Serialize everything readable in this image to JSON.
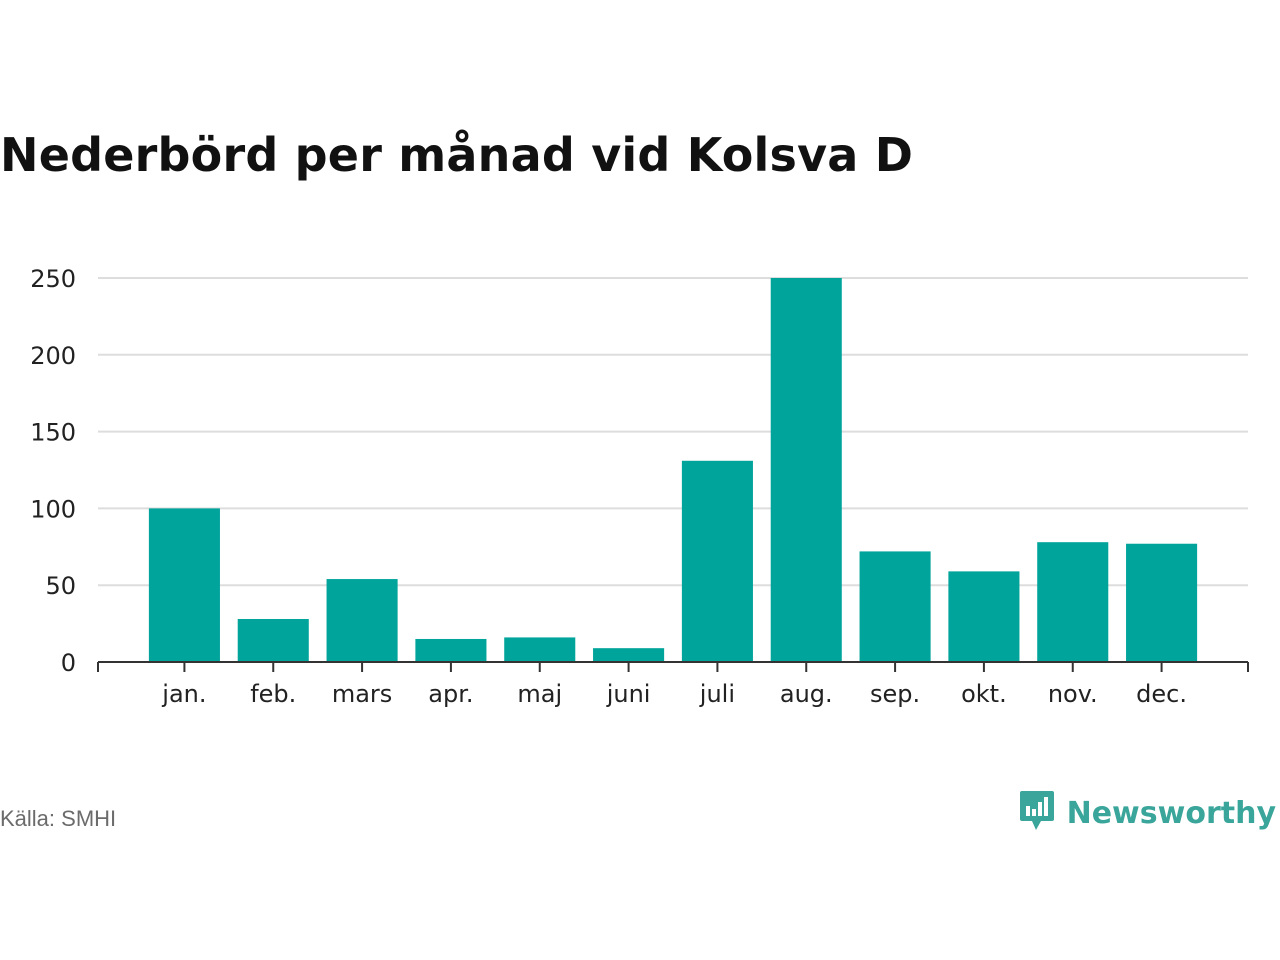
{
  "title": "Nederbörd per månad vid Kolsva D",
  "source": "Källa: SMHI",
  "brand": {
    "name": "Newsworthy",
    "icon": "newsworthy-logo-icon"
  },
  "colors": {
    "bar": "#00a49b",
    "grid": "#dddddd",
    "axis": "#333333",
    "brand": "#3aa59a",
    "source": "#6b6b6b"
  },
  "chart_data": {
    "type": "bar",
    "categories": [
      "jan.",
      "feb.",
      "mars",
      "apr.",
      "maj",
      "juni",
      "juli",
      "aug.",
      "sep.",
      "okt.",
      "nov.",
      "dec."
    ],
    "values": [
      100,
      28,
      54,
      15,
      16,
      9,
      131,
      250,
      72,
      59,
      78,
      77
    ],
    "ylim": [
      0,
      250
    ],
    "yticks": [
      0,
      50,
      100,
      150,
      200,
      250
    ],
    "grid": true,
    "legend": "none"
  }
}
